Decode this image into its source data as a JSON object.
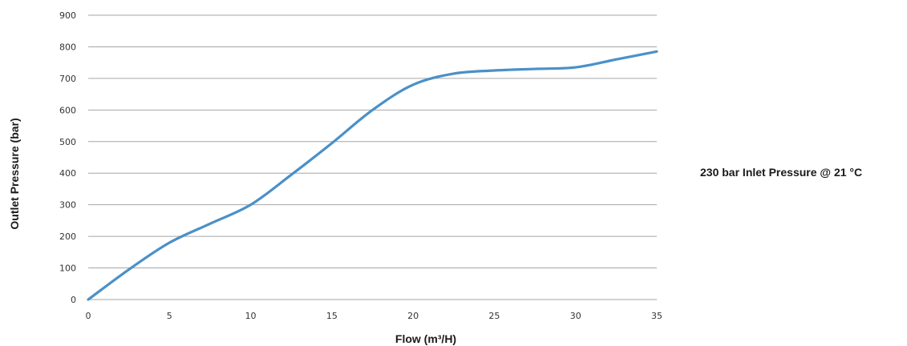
{
  "chart_data": {
    "type": "line",
    "title": "",
    "xlabel": "Flow (m³/H)",
    "ylabel": "Outlet Pressure (bar)",
    "xlim": [
      0,
      35
    ],
    "ylim": [
      0,
      900
    ],
    "x_ticks": [
      "0",
      "5",
      "10",
      "15",
      "20",
      "25",
      "30",
      "35"
    ],
    "y_ticks": [
      "0",
      "100",
      "200",
      "300",
      "400",
      "500",
      "600",
      "700",
      "800",
      "900"
    ],
    "grid": "horizontal",
    "legend_position": "right",
    "series": [
      {
        "name": "230 bar Inlet Pressure @ 21 °C",
        "color": "#4a90c8",
        "x": [
          0,
          2.5,
          5,
          7.5,
          10,
          12.5,
          15,
          17.5,
          20,
          22.5,
          25,
          27.5,
          30,
          32.5,
          35
        ],
        "y": [
          0,
          95,
          180,
          240,
          300,
          395,
          495,
          600,
          680,
          715,
          725,
          730,
          735,
          760,
          785
        ]
      }
    ]
  }
}
